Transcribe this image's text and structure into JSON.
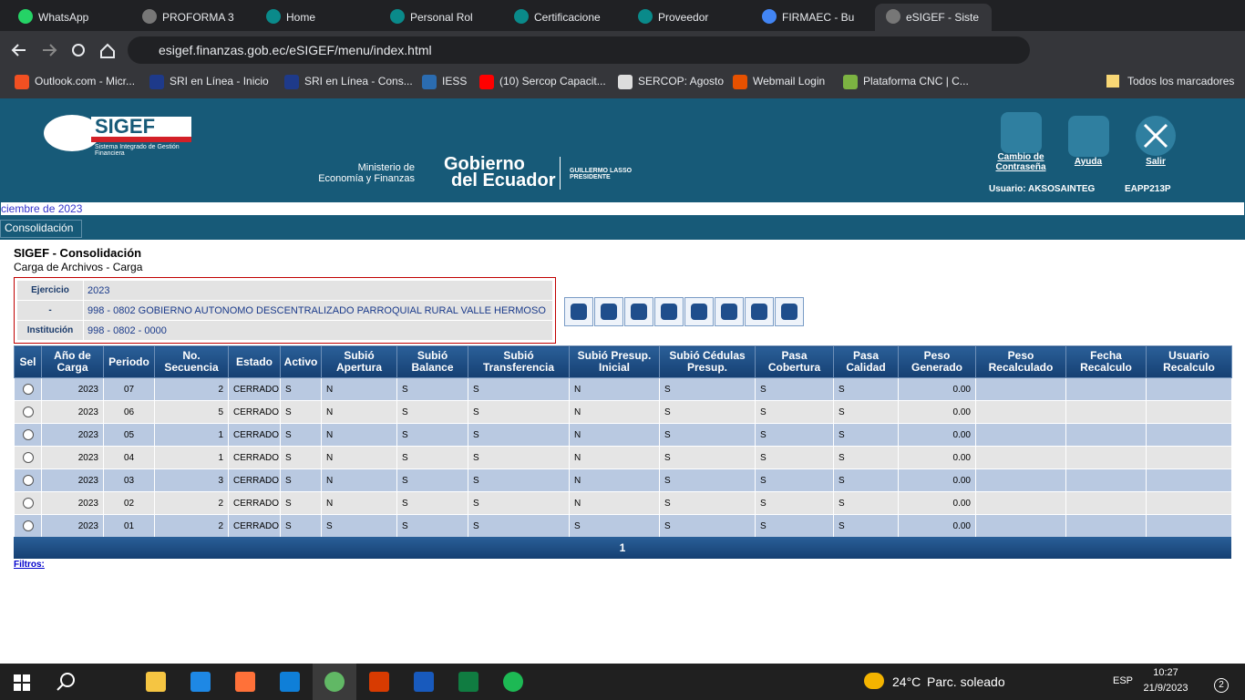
{
  "browser": {
    "tabs": [
      "WhatsApp",
      "PROFORMA 3",
      "Home",
      "Personal Rol",
      "Certificacione",
      "Proveedor",
      "FIRMAEC - Bu",
      "eSIGEF - Siste"
    ],
    "url": "esigef.finanzas.gob.ec/eSIGEF/menu/index.html",
    "bookmarks": [
      "Outlook.com - Micr...",
      "SRI en Línea - Inicio",
      "SRI en Línea - Cons...",
      "IESS",
      "(10) Sercop Capacit...",
      "SERCOP: Agosto",
      "Webmail Login",
      "Plataforma CNC | C..."
    ],
    "bookmarks_all": "Todos los marcadores"
  },
  "header": {
    "logo": "SIGEF",
    "logo_subtitle": "Sistema Integrado de Gestión Financiera",
    "ministry": [
      "Ministerio de",
      "Economía y Finanzas"
    ],
    "government": [
      "Gobierno",
      "del Ecuador"
    ],
    "president": [
      "GUILLERMO LASSO",
      "PRESIDENTE"
    ],
    "actions": [
      "Cambio de Contraseña",
      "Ayuda",
      "Salir"
    ],
    "user": "Usuario: AKSOSAINTEG",
    "server": "EAPP213P"
  },
  "ticker": "ciembre de 2023",
  "menu": [
    "Consolidación"
  ],
  "page": {
    "title": "SIGEF - Consolidación",
    "subtitle": "Carga de Archivos - Carga"
  },
  "info": {
    "rows": [
      [
        "Ejercicio",
        "2023"
      ],
      [
        "-",
        "998 - 0802 GOBIERNO AUTONOMO DESCENTRALIZADO PARROQUIAL RURAL VALLE HERMOSO"
      ],
      [
        "Institución",
        "998 - 0802 - 0000"
      ]
    ]
  },
  "table": {
    "columns": [
      "Sel",
      "Año de Carga",
      "Periodo",
      "No. Secuencia",
      "Estado",
      "Activo",
      "Subió Apertura",
      "Subió Balance",
      "Subió Transferencia",
      "Subió Presup. Inicial",
      "Subió Cédulas Presup.",
      "Pasa Cobertura",
      "Pasa Calidad",
      "Peso Generado",
      "Peso Recalculado",
      "Fecha Recalculo",
      "Usuario Recalculo"
    ],
    "rows": [
      [
        "2023",
        "07",
        "2",
        "CERRADO",
        "S",
        "N",
        "S",
        "S",
        "N",
        "S",
        "S",
        "S",
        "0.00",
        null,
        null,
        null
      ],
      [
        "2023",
        "06",
        "5",
        "CERRADO",
        "S",
        "N",
        "S",
        "S",
        "N",
        "S",
        "S",
        "S",
        "0.00",
        null,
        null,
        null
      ],
      [
        "2023",
        "05",
        "1",
        "CERRADO",
        "S",
        "N",
        "S",
        "S",
        "N",
        "S",
        "S",
        "S",
        "0.00",
        null,
        null,
        null
      ],
      [
        "2023",
        "04",
        "1",
        "CERRADO",
        "S",
        "N",
        "S",
        "S",
        "N",
        "S",
        "S",
        "S",
        "0.00",
        null,
        null,
        null
      ],
      [
        "2023",
        "03",
        "3",
        "CERRADO",
        "S",
        "N",
        "S",
        "S",
        "N",
        "S",
        "S",
        "S",
        "0.00",
        null,
        null,
        null
      ],
      [
        "2023",
        "02",
        "2",
        "CERRADO",
        "S",
        "N",
        "S",
        "S",
        "N",
        "S",
        "S",
        "S",
        "0.00",
        null,
        null,
        null
      ],
      [
        "2023",
        "01",
        "2",
        "CERRADO",
        "S",
        "S",
        "S",
        "S",
        "S",
        "S",
        "S",
        "S",
        "0.00",
        null,
        null,
        null
      ]
    ],
    "pagination": "1",
    "filters": "Filtros:"
  },
  "taskbar": {
    "weather_temp": "24°C",
    "weather_text": "Parc. soleado",
    "language": "ESP",
    "time": "10:27",
    "date": "21/9/2023",
    "notifications": "2"
  }
}
